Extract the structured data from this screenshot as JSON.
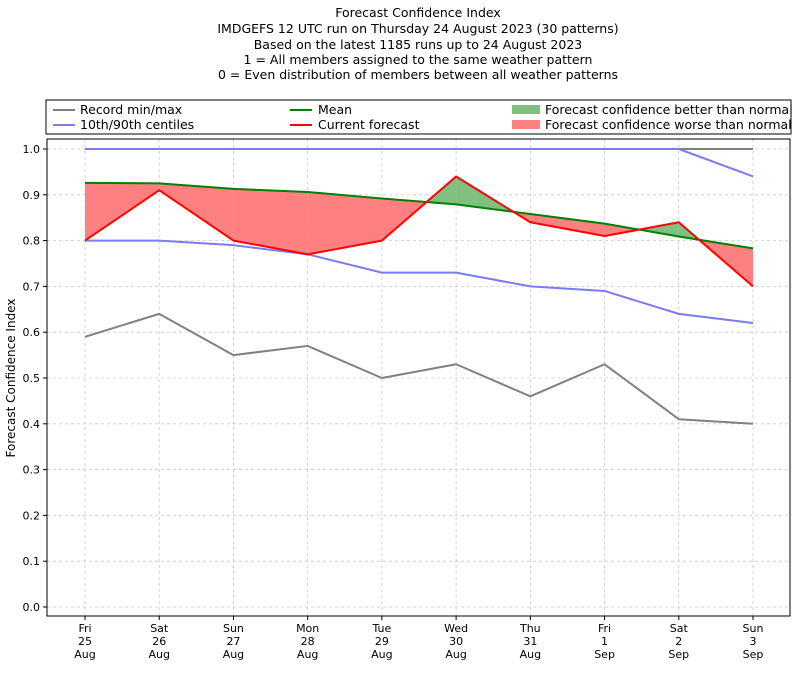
{
  "chart_data": {
    "type": "line",
    "title_lines": [
      "Forecast Confidence Index",
      "IMDGEFS 12 UTC run on Thursday 24 August 2023 (30 patterns)",
      "Based on the latest 1185 runs up to 24 August 2023",
      "1 = All members assigned to the same weather pattern",
      "0 = Even distribution of members between all weather patterns"
    ],
    "ylabel": "Forecast Confidence Index",
    "xlabel": "",
    "ylim": [
      0,
      1.0
    ],
    "yticks": [
      "0.0",
      "0.1",
      "0.2",
      "0.3",
      "0.4",
      "0.5",
      "0.6",
      "0.7",
      "0.8",
      "0.9",
      "1.0"
    ],
    "grid": true,
    "legend_position": "top",
    "categories": [
      {
        "day": "Fri",
        "date": "25",
        "month": "Aug"
      },
      {
        "day": "Sat",
        "date": "26",
        "month": "Aug"
      },
      {
        "day": "Sun",
        "date": "27",
        "month": "Aug"
      },
      {
        "day": "Mon",
        "date": "28",
        "month": "Aug"
      },
      {
        "day": "Tue",
        "date": "29",
        "month": "Aug"
      },
      {
        "day": "Wed",
        "date": "30",
        "month": "Aug"
      },
      {
        "day": "Thu",
        "date": "31",
        "month": "Aug"
      },
      {
        "day": "Fri",
        "date": "1",
        "month": "Sep"
      },
      {
        "day": "Sat",
        "date": "2",
        "month": "Sep"
      },
      {
        "day": "Sun",
        "date": "3",
        "month": "Sep"
      }
    ],
    "series": [
      {
        "key": "record_max",
        "values": [
          1.0,
          1.0,
          1.0,
          1.0,
          1.0,
          1.0,
          1.0,
          1.0,
          1.0,
          1.0
        ],
        "color": "#808080"
      },
      {
        "key": "record_min",
        "values": [
          0.59,
          0.64,
          0.55,
          0.57,
          0.5,
          0.53,
          0.46,
          0.53,
          0.41,
          0.4
        ],
        "color": "#808080"
      },
      {
        "key": "p90",
        "values": [
          1.0,
          1.0,
          1.0,
          1.0,
          1.0,
          1.0,
          1.0,
          1.0,
          1.0,
          0.94
        ],
        "color": "#7b7bf2"
      },
      {
        "key": "p10",
        "values": [
          0.8,
          0.8,
          0.79,
          0.77,
          0.73,
          0.73,
          0.7,
          0.69,
          0.64,
          0.62
        ],
        "color": "#7b7bf2"
      },
      {
        "key": "mean",
        "values": [
          0.926,
          0.925,
          0.913,
          0.906,
          0.892,
          0.879,
          0.858,
          0.837,
          0.809,
          0.783
        ],
        "color": "#008000"
      },
      {
        "key": "current",
        "values": [
          0.8,
          0.91,
          0.8,
          0.77,
          0.8,
          0.94,
          0.84,
          0.81,
          0.84,
          0.7
        ],
        "color": "#ff0000"
      }
    ],
    "legend": [
      {
        "label": "Record min/max",
        "kind": "line",
        "color": "#808080"
      },
      {
        "label": "10th/90th centiles",
        "kind": "line",
        "color": "#7b7bf2"
      },
      {
        "label": "Mean",
        "kind": "line",
        "color": "#008000"
      },
      {
        "label": "Current forecast",
        "kind": "line",
        "color": "#ff0000"
      },
      {
        "label": "Forecast confidence better than normal",
        "kind": "patch",
        "color": "#7fbf7f"
      },
      {
        "label": "Forecast confidence worse than normal",
        "kind": "patch",
        "color": "#ff8080"
      }
    ],
    "fill_better_color": "#7fbf7f",
    "fill_worse_color": "#ff8080"
  }
}
